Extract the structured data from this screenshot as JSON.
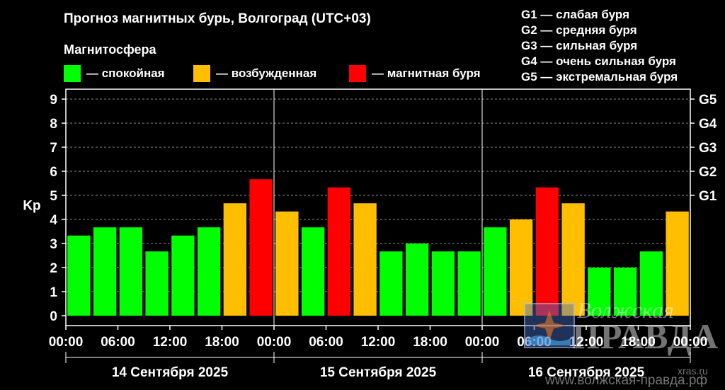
{
  "title": "Прогноз магнитных бурь, Волгоград (UTC+03)",
  "subtitle": "Магнитосфера",
  "legend": [
    {
      "label": "— спокойная",
      "color": "#00ff00"
    },
    {
      "label": "— возбужденная",
      "color": "#ffbf00"
    },
    {
      "label": "— магнитная буря",
      "color": "#ff0000"
    }
  ],
  "g_scale": [
    "G1 — слабая буря",
    "G2 — средняя буря",
    "G3 — сильная буря",
    "G4 — очень сильная буря",
    "G5 — экстремальная буря"
  ],
  "watermark": {
    "line1": "Волжская",
    "line2": "правда",
    "site1": "xras.ru",
    "site2": "www.волжская-правда.рф"
  },
  "chart_data": {
    "type": "bar",
    "ylabel": "Kp",
    "ylim": [
      0,
      9
    ],
    "yticks": [
      0,
      1,
      2,
      3,
      4,
      5,
      6,
      7,
      8,
      9
    ],
    "right_ticks": [
      {
        "value": 5,
        "label": "G1"
      },
      {
        "value": 6,
        "label": "G2"
      },
      {
        "value": 7,
        "label": "G3"
      },
      {
        "value": 8,
        "label": "G4"
      },
      {
        "value": 9,
        "label": "G5"
      }
    ],
    "xtick_labels": [
      "00:00",
      "06:00",
      "12:00",
      "18:00",
      "00:00",
      "06:00",
      "12:00",
      "18:00",
      "00:00",
      "06:00",
      "12:00",
      "18:00",
      "00:00"
    ],
    "days": [
      "14 Сентября 2025",
      "15 Сентября 2025",
      "16 Сентября 2025"
    ],
    "grid": true,
    "values": [
      3.33,
      3.67,
      3.67,
      2.67,
      3.33,
      3.67,
      4.67,
      5.67,
      4.33,
      3.67,
      5.33,
      4.67,
      2.67,
      3.0,
      2.67,
      2.67,
      3.67,
      4.0,
      5.33,
      4.67,
      2.0,
      2.0,
      2.67,
      4.33
    ],
    "levels": [
      "quiet",
      "quiet",
      "quiet",
      "quiet",
      "quiet",
      "quiet",
      "active",
      "storm",
      "active",
      "quiet",
      "storm",
      "active",
      "quiet",
      "quiet",
      "quiet",
      "quiet",
      "quiet",
      "active",
      "storm",
      "active",
      "quiet",
      "quiet",
      "quiet",
      "active"
    ],
    "level_colors": {
      "quiet": "#00ff00",
      "active": "#ffbf00",
      "storm": "#ff0000"
    }
  }
}
